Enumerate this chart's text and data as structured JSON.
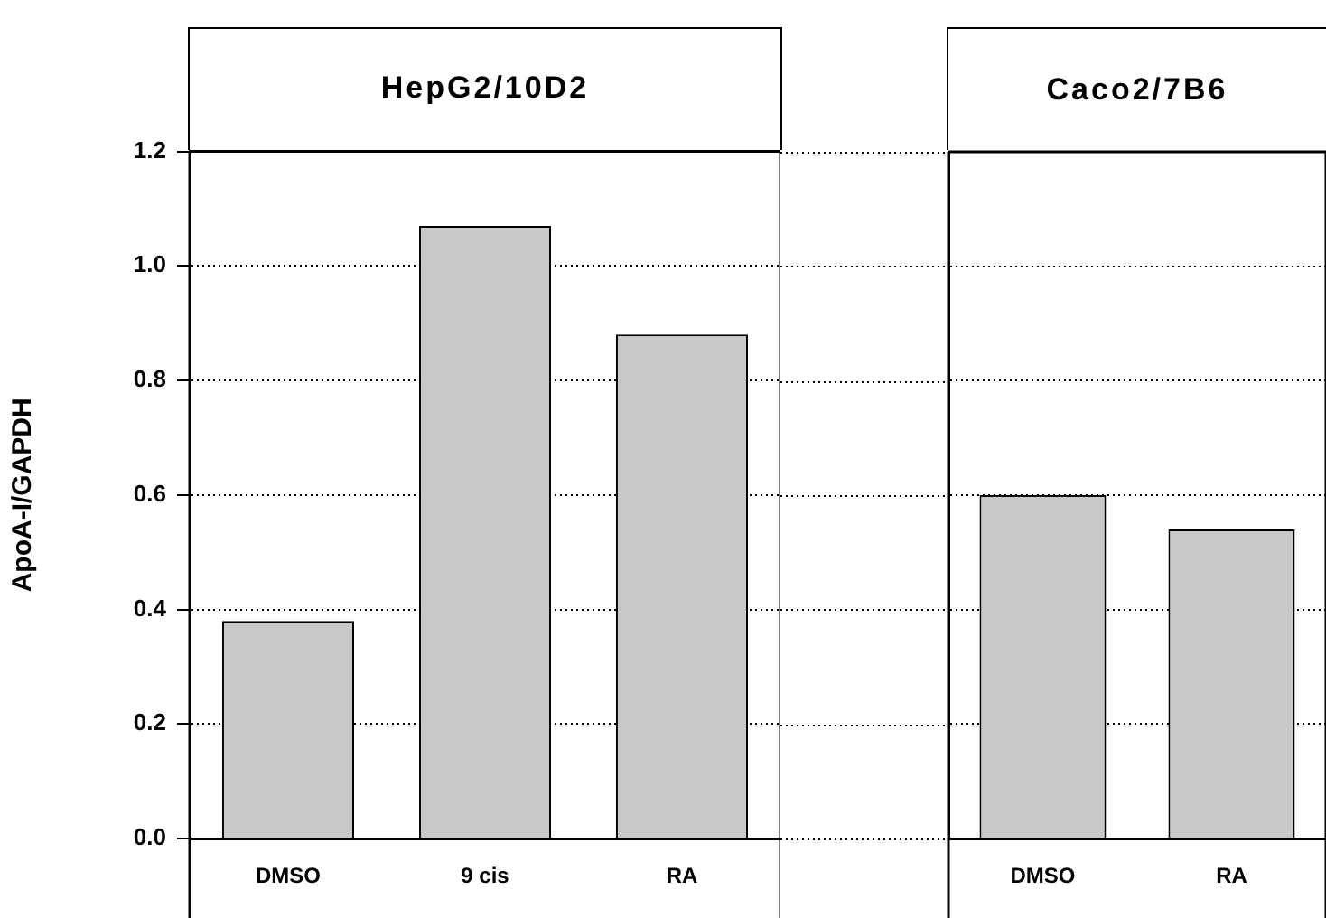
{
  "chart_data": [
    {
      "type": "bar",
      "title": "HepG2/10D2",
      "ylabel": "ApoA-I/GAPDH",
      "categories": [
        "DMSO",
        "9 cis",
        "RA"
      ],
      "values": [
        0.38,
        1.07,
        0.88
      ],
      "color": "#c8c8c8",
      "ylim": [
        0,
        1.2
      ],
      "yticks": [
        {
          "value": 0,
          "label": "0.0"
        },
        {
          "value": 0.2,
          "label": "0.2"
        },
        {
          "value": 0.4,
          "label": "0.4"
        },
        {
          "value": 0.6,
          "label": "0.6"
        },
        {
          "value": 0.8,
          "label": "0.8"
        },
        {
          "value": 1,
          "label": "1.0"
        },
        {
          "value": 1.2,
          "label": "1.2"
        }
      ],
      "grid": "y"
    },
    {
      "type": "bar",
      "title": "Caco2/7B6",
      "categories": [
        "DMSO",
        "RA"
      ],
      "values": [
        0.6,
        0.54
      ],
      "color": "#c8c8c8",
      "ylim": [
        0,
        1.2
      ],
      "yticks": [
        0,
        0.2,
        0.4,
        0.6,
        0.8,
        1,
        1.2
      ],
      "grid": "y",
      "tick_labels": "x"
    }
  ]
}
